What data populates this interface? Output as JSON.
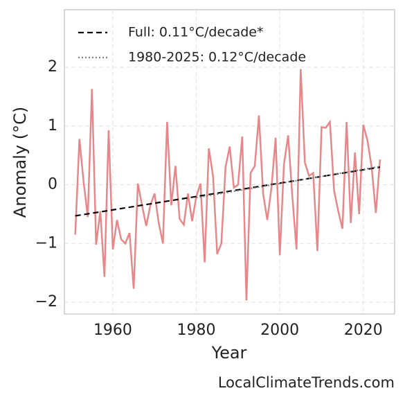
{
  "chart_data": {
    "type": "line",
    "x_label": "Year",
    "y_label": "Anomaly (°C)",
    "footer": "LocalClimateTrends.com",
    "x": [
      1951,
      1952,
      1953,
      1954,
      1955,
      1956,
      1957,
      1958,
      1959,
      1960,
      1961,
      1962,
      1963,
      1964,
      1965,
      1966,
      1967,
      1968,
      1969,
      1970,
      1971,
      1972,
      1973,
      1974,
      1975,
      1976,
      1977,
      1978,
      1979,
      1980,
      1981,
      1982,
      1983,
      1984,
      1985,
      1986,
      1987,
      1988,
      1989,
      1990,
      1991,
      1992,
      1993,
      1994,
      1995,
      1996,
      1997,
      1998,
      1999,
      2000,
      2001,
      2002,
      2003,
      2004,
      2005,
      2006,
      2007,
      2008,
      2009,
      2010,
      2011,
      2012,
      2013,
      2014,
      2015,
      2016,
      2017,
      2018,
      2019,
      2020,
      2021,
      2022,
      2023,
      2024
    ],
    "values": [
      -0.85,
      0.78,
      0.05,
      -0.55,
      1.63,
      -1.02,
      -0.45,
      -1.57,
      0.93,
      -1.1,
      -0.6,
      -0.93,
      -1.0,
      -0.82,
      -1.77,
      0.02,
      -0.35,
      -0.7,
      -0.35,
      -0.15,
      -0.65,
      -1.0,
      1.07,
      -0.35,
      0.32,
      -0.58,
      -0.68,
      -0.15,
      -0.62,
      -0.2,
      0.02,
      -1.32,
      0.62,
      0.15,
      -1.18,
      -1.0,
      0.3,
      0.65,
      -0.05,
      0.0,
      0.82,
      -1.97,
      0.2,
      0.32,
      1.18,
      -0.15,
      -0.6,
      -0.05,
      0.8,
      -1.2,
      0.35,
      0.84,
      -0.2,
      -1.1,
      1.97,
      0.38,
      0.15,
      0.2,
      -1.13,
      0.98,
      0.97,
      1.07,
      -0.1,
      -0.45,
      -0.75,
      1.07,
      -0.65,
      0.55,
      -0.5,
      1.02,
      0.75,
      0.3,
      -0.48,
      0.43
    ],
    "color": "#e8878a",
    "series": [
      {
        "name": "Full: 0.11°C/decade*",
        "color": "#000000",
        "dash": "8,5",
        "x": [
          1951,
          2024
        ],
        "values": [
          -0.53,
          0.3
        ]
      },
      {
        "name": "1980-2025: 0.12°C/decade",
        "color": "#808080",
        "dash": "2,3",
        "x": [
          1980,
          2024
        ],
        "values": [
          -0.22,
          0.31
        ]
      }
    ],
    "xlim": [
      1948.4,
      2027.5
    ],
    "xticks": [
      1960,
      1980,
      2000,
      2020
    ],
    "ylim": [
      -2.2,
      2.98
    ],
    "yticks": [
      {
        "value": -2,
        "label": "−2"
      },
      {
        "value": -1,
        "label": "−1"
      },
      0,
      1,
      2
    ],
    "grid": true,
    "legend": "upper left"
  }
}
